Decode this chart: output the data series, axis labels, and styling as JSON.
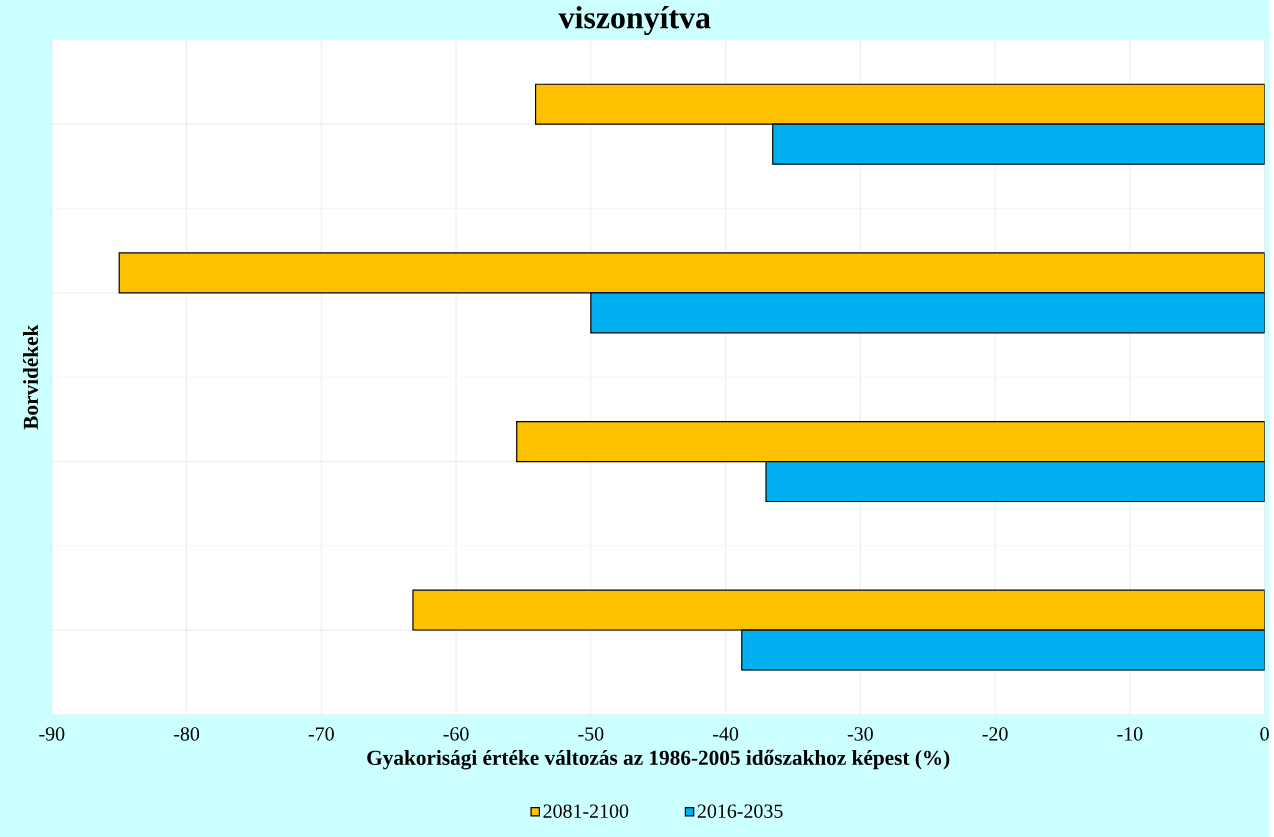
{
  "chart_data": {
    "type": "bar",
    "orientation": "horizontal",
    "title": "viszonyítva",
    "xlabel": "Gyakorisági értéke változás az 1986-2005 időszakhoz képest (%)",
    "ylabel": "Borvidékek",
    "categories": [
      null,
      null,
      null,
      null
    ],
    "series": [
      {
        "name": "2081-2100",
        "color": "#ffc000",
        "values": [
          -54.1,
          -85.0,
          -55.5,
          -63.2
        ]
      },
      {
        "name": "2016-2035",
        "color": "#00b0f0",
        "values": [
          -36.5,
          -50.0,
          -37.0,
          -38.8
        ]
      }
    ],
    "xlim": [
      -90,
      0
    ],
    "xticks": [
      -90,
      -80,
      -70,
      -60,
      -50,
      -40,
      -30,
      -20,
      -10,
      0
    ],
    "grid": true,
    "legend": "bottom"
  }
}
